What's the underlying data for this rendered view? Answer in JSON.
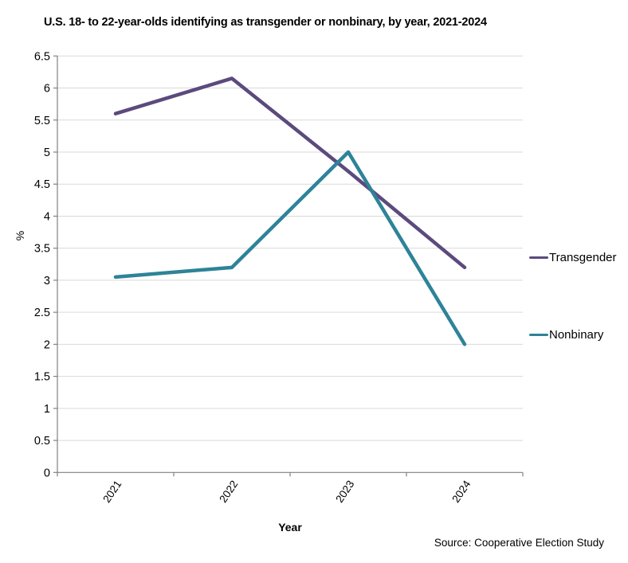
{
  "source": "Source: Cooperative Election Study",
  "chart_data": {
    "type": "line",
    "title": "U.S. 18- to 22-year-olds identifying as transgender or nonbinary, by year, 2021-2024",
    "categories": [
      "2021",
      "2022",
      "2023",
      "2024"
    ],
    "series": [
      {
        "name": "Transgender",
        "color": "#5c4a7d",
        "values": [
          5.6,
          6.15,
          4.7,
          3.2
        ]
      },
      {
        "name": "Nonbinary",
        "color": "#2e8399",
        "values": [
          3.05,
          3.2,
          5.0,
          2.0
        ]
      }
    ],
    "xlabel": "Year",
    "ylabel": "%",
    "ylim": [
      0,
      6.5
    ],
    "ytick_step": 0.5,
    "grid": true,
    "grid_color": "#d9d9d9",
    "axis_color": "#808080",
    "legend_position": "right",
    "line_width": 4.5
  }
}
